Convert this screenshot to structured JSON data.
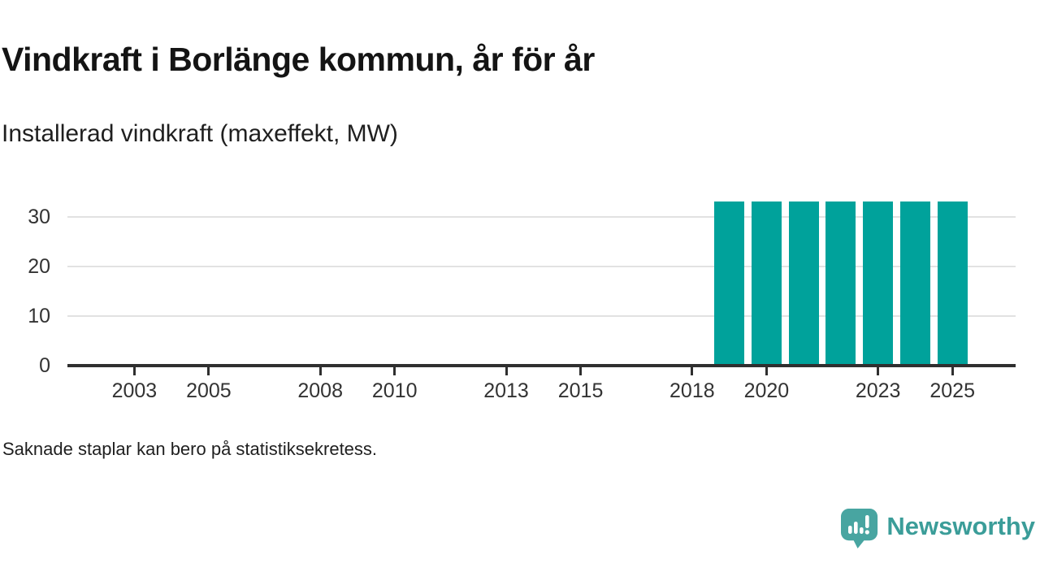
{
  "page": {
    "title": "Vindkraft i Borlänge kommun, år för år",
    "subtitle": "Installerad vindkraft (maxeffekt, MW)",
    "note": "Saknade staplar kan bero på statistiksekretess.",
    "background_color": "#ffffff"
  },
  "branding": {
    "logo_text": "Newsworthy",
    "logo_icon": "bar-chart-speech-bubble-icon",
    "icon_color": "#48a5a1",
    "text_color": "#3b9d99"
  },
  "chart_data": {
    "type": "bar",
    "title": "Vindkraft i Borlänge kommun, år för år",
    "subtitle": "Installerad vindkraft (maxeffekt, MW)",
    "ylabel": "MW",
    "xlabel": "",
    "categories": [
      2002,
      2003,
      2004,
      2005,
      2006,
      2007,
      2008,
      2009,
      2010,
      2011,
      2012,
      2013,
      2014,
      2015,
      2016,
      2017,
      2018,
      2019,
      2020,
      2021,
      2022,
      2023,
      2024,
      2025
    ],
    "values": [
      null,
      null,
      null,
      null,
      null,
      null,
      null,
      null,
      null,
      null,
      null,
      null,
      null,
      null,
      null,
      null,
      null,
      33,
      33,
      33,
      33,
      33,
      33,
      33
    ],
    "xticks": [
      2003,
      2005,
      2008,
      2010,
      2013,
      2015,
      2018,
      2020,
      2023,
      2025
    ],
    "yticks": [
      0,
      10,
      20,
      30
    ],
    "xlim": [
      2001.2,
      2026.7
    ],
    "ylim": [
      0,
      36
    ],
    "grid": "horizontal-only",
    "legend": "none",
    "note": "Saknade staplar kan bero på statistiksekretess.",
    "bar_color": "#00a29b",
    "grid_color": "#e2e2e2",
    "axis_color": "#2f2f2f",
    "tick_label_color": "#333333"
  }
}
